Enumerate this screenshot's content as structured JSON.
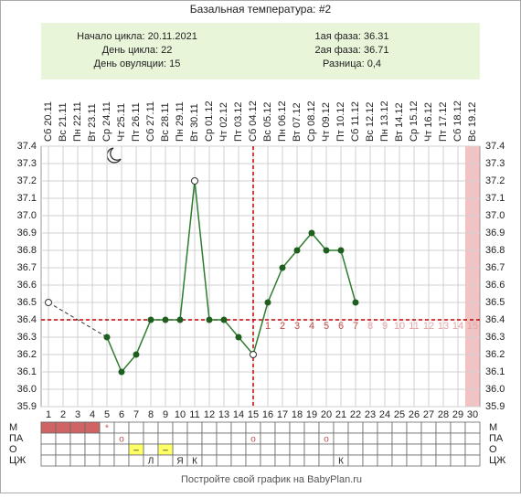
{
  "chart_data": {
    "type": "line",
    "title": "Базальная температура: #2",
    "info_left": [
      "Начало цикла: 20.11.2021",
      "День цикла: 22",
      "День овуляции: 15"
    ],
    "info_right": [
      "1ая фаза: 36.31",
      "2ая фаза: 36.71",
      "Разница: 0,4"
    ],
    "dates": [
      "Сб 20.11",
      "Вс 21.11",
      "Пн 22.11",
      "Вт 23.11",
      "Ср 24.11",
      "Чт 25.11",
      "Пт 26.11",
      "Сб 27.11",
      "Вс 28.11",
      "Пн 29.11",
      "Вт 30.11",
      "Ср 01.12",
      "Чт 02.12",
      "Пт 03.12",
      "Сб 04.12",
      "Вс 05.12",
      "Пн 06.12",
      "Вт 07.12",
      "Ср 08.12",
      "Чт 09.12",
      "Пт 10.12",
      "Сб 11.12",
      "Вс 12.12",
      "Пн 13.12",
      "Вт 14.12",
      "Ср 15.12",
      "Чт 16.12",
      "Пт 17.12",
      "Сб 18.12",
      "Вс 19.12"
    ],
    "x": [
      1,
      2,
      3,
      4,
      5,
      6,
      7,
      8,
      9,
      10,
      11,
      12,
      13,
      14,
      15,
      16,
      17,
      18,
      19,
      20,
      21,
      22,
      23,
      24,
      25,
      26,
      27,
      28,
      29,
      30
    ],
    "series": [
      {
        "name": "Температура",
        "color": "#2e7d2e",
        "values": [
          36.5,
          null,
          null,
          null,
          36.3,
          36.1,
          36.2,
          36.4,
          36.4,
          36.4,
          37.2,
          36.4,
          36.4,
          36.3,
          36.2,
          36.5,
          36.7,
          36.8,
          36.9,
          36.8,
          36.8,
          36.5,
          null,
          null,
          null,
          null,
          null,
          null,
          null,
          null
        ]
      }
    ],
    "hollow_days": [
      1,
      11,
      15
    ],
    "xlim": [
      0.5,
      30.5
    ],
    "ylim": [
      35.9,
      37.4
    ],
    "yticks": [
      35.9,
      {
        "value": 36,
        "label": "36.0"
      },
      36.1,
      36.2,
      36.3,
      36.4,
      36.5,
      36.6,
      36.7,
      36.8,
      36.9,
      {
        "value": 37,
        "label": "37.0"
      },
      37.1,
      37.2,
      37.3,
      37.4
    ],
    "grid": true,
    "coverline": 36.4,
    "ovulation_day": 15,
    "highlight_day": 30,
    "highlight_color": "#f4c2c2",
    "luteal": {
      "start": 16,
      "labels": [
        1,
        2,
        3,
        4,
        5,
        6,
        7,
        8,
        9,
        10,
        11,
        12,
        13,
        14,
        15
      ],
      "color": "#c0504d",
      "future_color": "#e9a3a3"
    },
    "rows": [
      {
        "label": "М",
        "cells": [
          {
            "day": 1,
            "color": "#d06464"
          },
          {
            "day": 2,
            "color": "#d06464"
          },
          {
            "day": 3,
            "color": "#d06464"
          },
          {
            "day": 4,
            "color": "#d06464"
          },
          {
            "day": 5,
            "text": "*"
          }
        ]
      },
      {
        "label": "ПА",
        "cells": [
          {
            "day": 6,
            "text": "o"
          },
          {
            "day": 15,
            "text": "o"
          },
          {
            "day": 20,
            "text": "o"
          }
        ]
      },
      {
        "label": "О",
        "cells": [
          {
            "day": 7,
            "text": "–",
            "color": "#ffff66"
          },
          {
            "day": 9,
            "text": "–",
            "color": "#ffff66"
          }
        ]
      },
      {
        "label": "ЦЖ",
        "cells": [
          {
            "day": 8,
            "text": "Л"
          },
          {
            "day": 10,
            "text": "Я"
          },
          {
            "day": 11,
            "text": "К"
          },
          {
            "day": 21,
            "text": "К"
          }
        ]
      }
    ],
    "footer": "Постройте свой график на BabyPlan.ru"
  }
}
